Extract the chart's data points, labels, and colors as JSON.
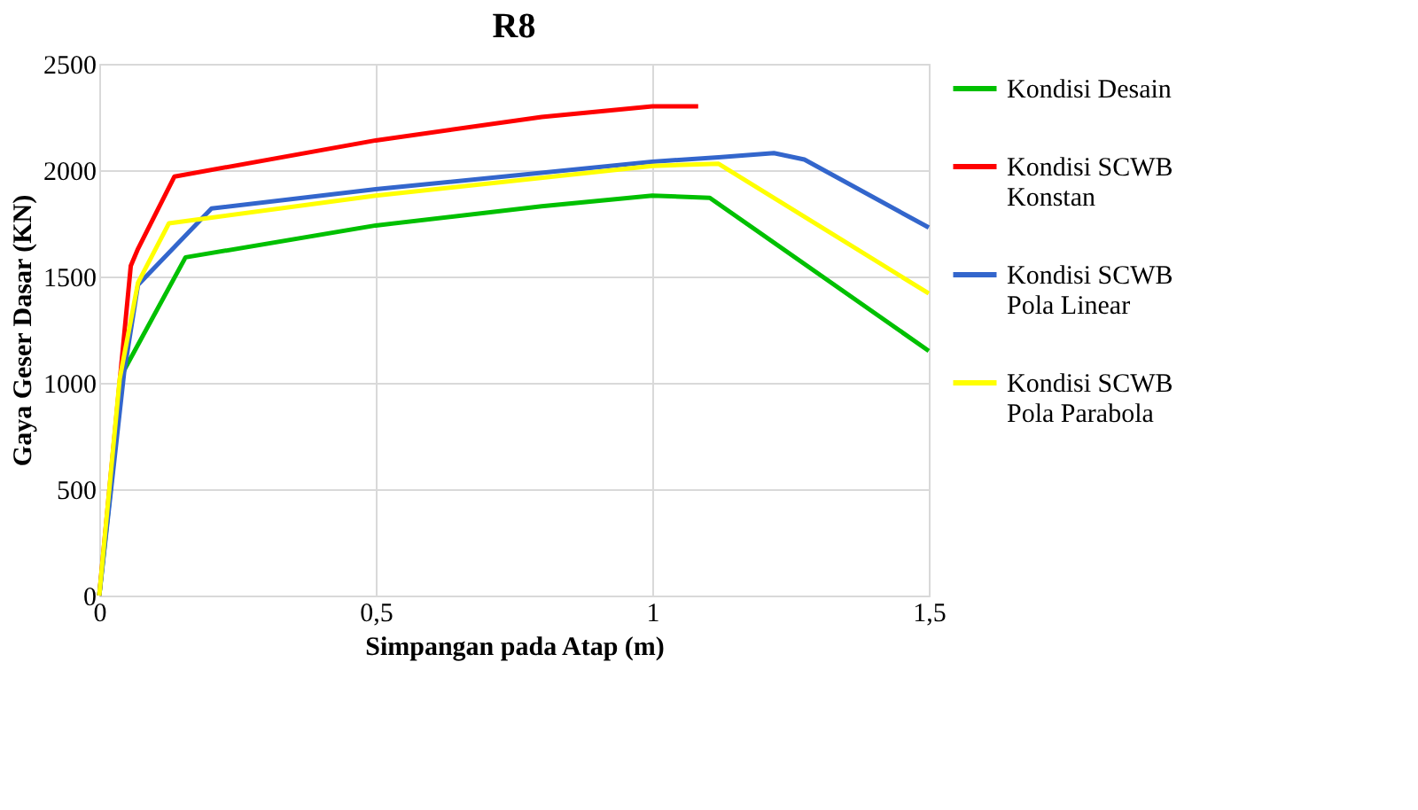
{
  "chart_data": {
    "type": "line",
    "title": "R8",
    "xlabel": "Simpangan pada Atap (m)",
    "ylabel": "Gaya Geser Dasar (KN)",
    "xlim": [
      0,
      1.5
    ],
    "xticks": [
      0,
      {
        "value": 0.5,
        "label": "0,5"
      },
      1,
      {
        "value": 1.5,
        "label": "1,5"
      }
    ],
    "ylim": [
      0,
      2500
    ],
    "yticks": [
      0,
      500,
      1000,
      1500,
      2000,
      2500
    ],
    "grid": true,
    "legend": "right",
    "marker": "none",
    "line_style": "solid",
    "series": [
      {
        "name": "Kondisi Desain",
        "color": "#00c000",
        "x": [
          0,
          0.043,
          0.156,
          0.5,
          0.8,
          1.0,
          1.104,
          1.5
        ],
        "values": [
          0,
          1050,
          1590,
          1740,
          1830,
          1880,
          1870,
          1150
        ]
      },
      {
        "name": "Kondisi SCWB Konstan",
        "color": "#ff0000",
        "x": [
          0,
          0.057,
          0.07,
          0.136,
          0.5,
          0.8,
          1.0,
          1.083
        ],
        "values": [
          0,
          1550,
          1630,
          1970,
          2140,
          2250,
          2300,
          2300
        ]
      },
      {
        "name": "Kondisi SCWB Pola Linear",
        "color": "#3366cc",
        "x": [
          0,
          0.045,
          0.07,
          0.203,
          0.5,
          1.0,
          1.12,
          1.22,
          1.275,
          1.5
        ],
        "values": [
          0,
          1050,
          1460,
          1820,
          1910,
          2040,
          2060,
          2080,
          2050,
          1730
        ]
      },
      {
        "name": "Kondisi SCWB Pola Parabola",
        "color": "#ffff00",
        "x": [
          0,
          0.037,
          0.07,
          0.126,
          0.5,
          1.0,
          1.12,
          1.5
        ],
        "values": [
          0,
          1020,
          1470,
          1750,
          1880,
          2020,
          2030,
          1420
        ]
      }
    ]
  }
}
